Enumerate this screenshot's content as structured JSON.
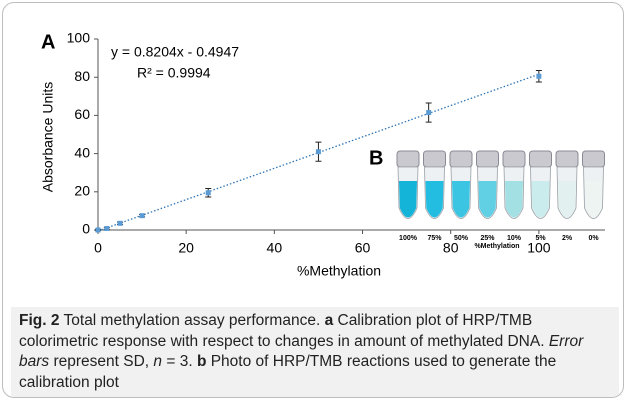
{
  "chart_data": {
    "type": "scatter",
    "panel_label": "A",
    "equation": "y = 0.8204x - 0.4947",
    "r_squared": "R² = 0.9994",
    "x_label": "%Methylation",
    "y_label": "Absorbance Units",
    "x": [
      0,
      2,
      5,
      10,
      25,
      50,
      75,
      100
    ],
    "series": [
      {
        "color": "#5b9bd5",
        "values": [
          0,
          0.8,
          3.5,
          7.5,
          19.5,
          41,
          61.5,
          80.5
        ],
        "errors": [
          0.3,
          0.5,
          0.6,
          0.6,
          2.2,
          5,
          5,
          3
        ]
      }
    ],
    "trendline": {
      "slope": 0.8204,
      "intercept": -0.4947,
      "color": "#2e75b6"
    },
    "xlim": [
      0,
      115
    ],
    "ylim": [
      0,
      100
    ],
    "xticks": [
      0,
      20,
      40,
      60,
      80,
      100
    ],
    "yticks": [
      0,
      20,
      40,
      60,
      80,
      100
    ]
  },
  "inset": {
    "panel_label": "B",
    "x_label": "%Methylation",
    "tubes": [
      "100%",
      "75%",
      "50%",
      "25%",
      "10%",
      "5%",
      "2%",
      "0%"
    ],
    "colors": [
      "#14b3d8",
      "#22bde0",
      "#3cc5e2",
      "#62d0e4",
      "#a3e0e4",
      "#cbecec",
      "#e2f1ef",
      "#eef4f2"
    ]
  },
  "caption": {
    "fig": "Fig. 2",
    "text1": " Total methylation assay performance. ",
    "a": "a",
    "text2": " Calibration plot of HRP/TMB colorimetric response with respect to changes in amount of methylated DNA. ",
    "err": "Error bars",
    "text3": " represent SD, ",
    "n": "n",
    "text4": " = 3. ",
    "b": "b",
    "text5": " Photo of HRP/TMB reactions used to generate the calibration plot"
  }
}
